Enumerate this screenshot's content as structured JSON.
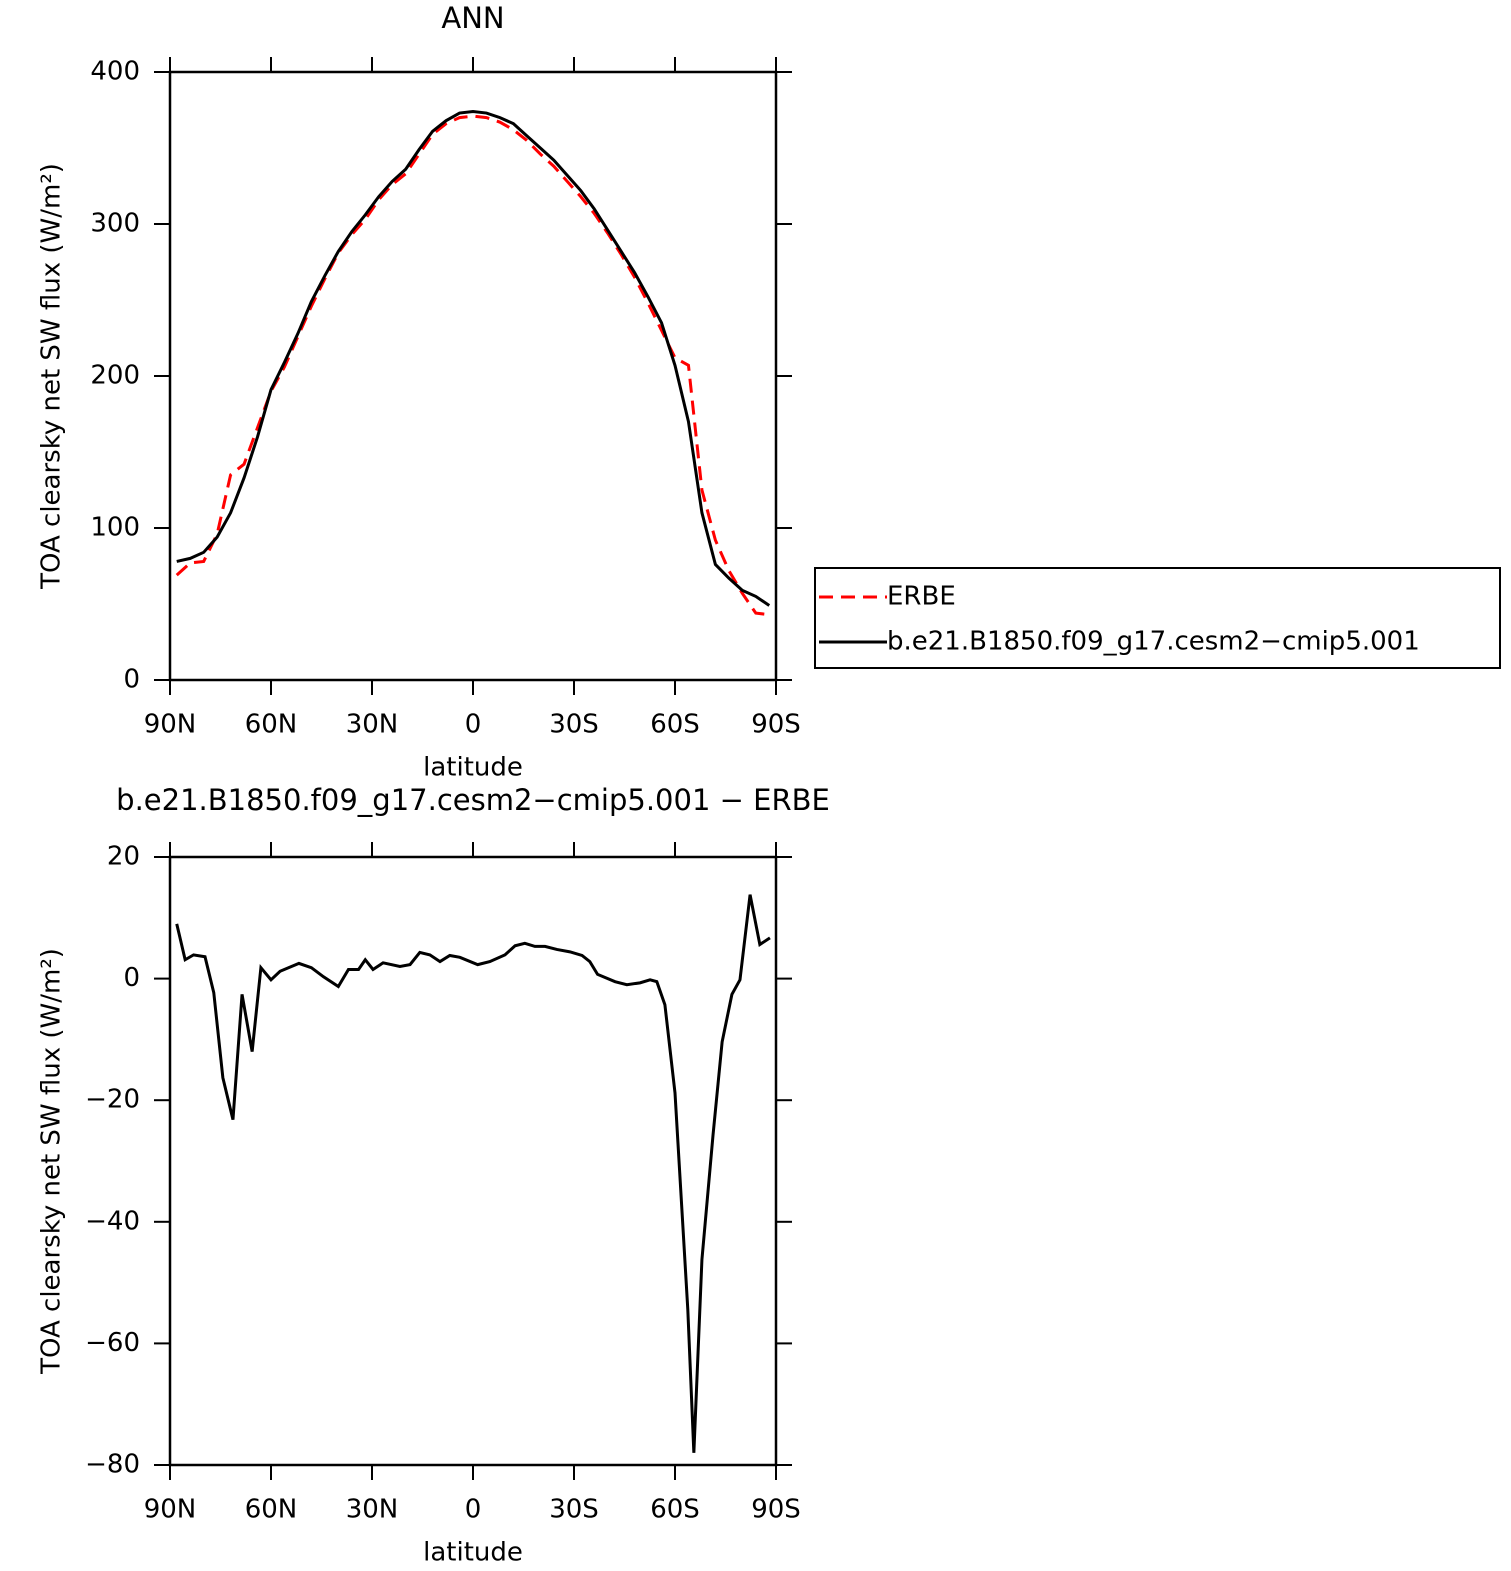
{
  "chart_data": [
    {
      "type": "line",
      "title": "ANN",
      "x_label": "latitude",
      "y_label": "TOA clearsky net SW flux (W/m²)",
      "x": [
        88,
        84,
        80,
        76,
        72,
        68,
        64,
        60,
        56,
        52,
        48,
        44,
        40,
        36,
        32,
        28,
        24,
        20,
        16,
        12,
        8,
        4,
        0,
        -4,
        -8,
        -12,
        -16,
        -20,
        -24,
        -28,
        -32,
        -36,
        -40,
        -44,
        -48,
        -52,
        -56,
        -60,
        -64,
        -68,
        -72,
        -76,
        -80,
        -84,
        -88
      ],
      "series": [
        {
          "name": "ERBE",
          "color": "#ff0000",
          "linestyle": "dashed",
          "values": [
            69,
            77,
            78,
            96,
            135,
            142,
            166,
            190,
            206,
            226,
            246,
            264,
            281,
            293,
            303,
            316,
            326,
            333,
            346,
            359,
            366,
            370,
            371,
            370,
            367,
            362,
            355,
            346,
            338,
            328,
            318,
            307,
            294,
            280,
            265,
            248,
            230,
            212,
            207,
            125,
            92,
            72,
            57,
            44,
            43
          ]
        },
        {
          "name": "b.e21.B1850.f09_g17.cesm2−cmip5.001",
          "color": "#000000",
          "linestyle": "solid",
          "values": [
            78,
            80,
            84,
            94,
            110,
            133,
            160,
            191,
            209,
            228,
            249,
            266,
            282,
            295,
            306,
            318,
            328,
            336,
            349,
            361,
            368,
            373,
            374,
            373,
            370,
            366,
            358,
            350,
            342,
            332,
            322,
            310,
            296,
            282,
            268,
            252,
            235,
            207,
            170,
            110,
            76,
            67,
            59,
            55,
            49
          ]
        }
      ],
      "xlim": [
        90,
        -90
      ],
      "xticks": [
        {
          "value": 90,
          "label": "90N"
        },
        {
          "value": 60,
          "label": "60N"
        },
        {
          "value": 30,
          "label": "30N"
        },
        0,
        {
          "value": -30,
          "label": "30S"
        },
        {
          "value": -60,
          "label": "60S"
        },
        {
          "value": -90,
          "label": "90S"
        }
      ],
      "ylim": [
        0,
        400
      ],
      "yticks": [
        0,
        100,
        200,
        300,
        400
      ],
      "legend": "right"
    },
    {
      "type": "line",
      "title": "b.e21.B1850.f09_g17.cesm2−cmip5.001 − ERBE",
      "x_label": "latitude",
      "y_label": "TOA clearsky net SW flux (W/m²)",
      "x": [
        88,
        85.5,
        83,
        79.6,
        77,
        74.3,
        71.3,
        68.6,
        65.6,
        63,
        60,
        57.3,
        51.7,
        48,
        44.4,
        40,
        37,
        34,
        32,
        29.7,
        26.7,
        21.7,
        18.7,
        15.8,
        12.8,
        9.8,
        6.9,
        3.9,
        -1.4,
        -5,
        -9.5,
        -12.5,
        -15.4,
        -18.4,
        -21.4,
        -24.9,
        -28.8,
        -32.4,
        -34.7,
        -37,
        -42.2,
        -45.7,
        -49.6,
        -52.6,
        -54.6,
        -57,
        -60,
        -63.8,
        -65.6,
        -68,
        -71.3,
        -74,
        -76.9,
        -79.3,
        -82.3,
        -85.2,
        -88.2
      ],
      "series": [
        {
          "color": "#000000",
          "linestyle": "solid",
          "values": [
            9,
            3.1,
            3.9,
            3.6,
            -2.3,
            -16.3,
            -23.2,
            -2.6,
            -12,
            1.8,
            -0.2,
            1.2,
            2.5,
            1.8,
            0.3,
            -1.3,
            1.5,
            1.5,
            3.1,
            1.5,
            2.6,
            2,
            2.3,
            4.3,
            3.9,
            2.8,
            3.8,
            3.5,
            2.3,
            2.8,
            3.9,
            5.4,
            5.8,
            5.3,
            5.3,
            4.8,
            4.4,
            3.8,
            2.8,
            0.7,
            -0.5,
            -1,
            -0.7,
            -0.2,
            -0.5,
            -4.3,
            -18.8,
            -54.4,
            -78,
            -46.2,
            -25.7,
            -10.4,
            -2.6,
            -0.2,
            13.8,
            5.6,
            6.7
          ]
        }
      ],
      "xlim": [
        90,
        -90
      ],
      "xticks": [
        {
          "value": 90,
          "label": "90N"
        },
        {
          "value": 60,
          "label": "60N"
        },
        {
          "value": 30,
          "label": "30N"
        },
        0,
        {
          "value": -30,
          "label": "30S"
        },
        {
          "value": -60,
          "label": "60S"
        },
        {
          "value": -90,
          "label": "90S"
        }
      ],
      "ylim": [
        -80,
        20
      ],
      "yticks": [
        {
          "value": -80,
          "label": "−80"
        },
        {
          "value": -60,
          "label": "−60"
        },
        {
          "value": -40,
          "label": "−40"
        },
        {
          "value": -20,
          "label": "−20"
        },
        0,
        20
      ]
    }
  ]
}
